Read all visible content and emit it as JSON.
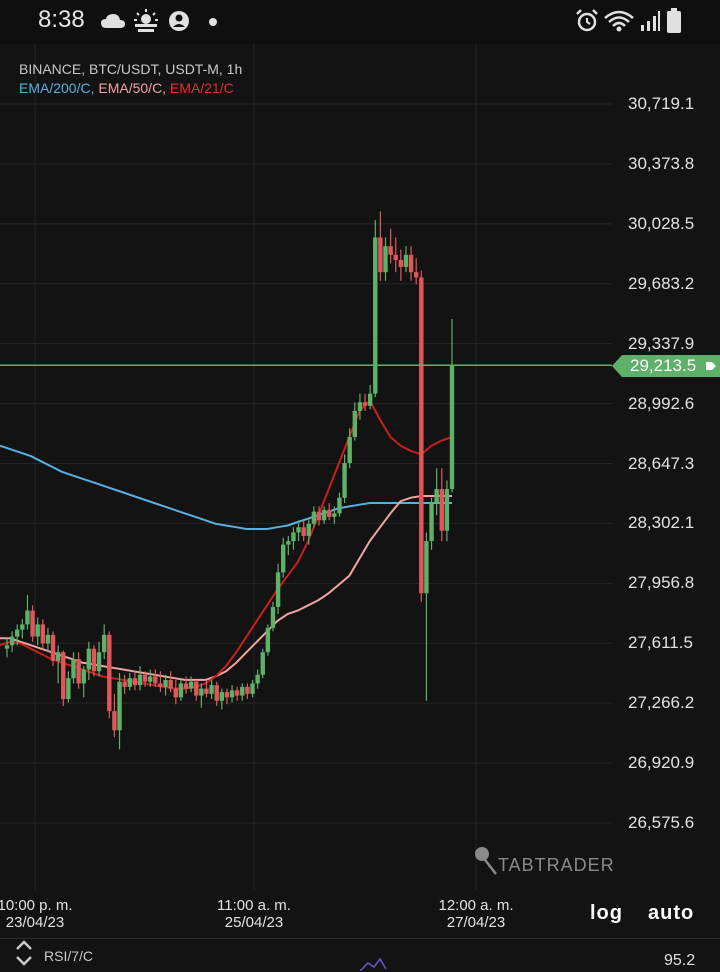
{
  "status_bar": {
    "time": "8:38"
  },
  "header": {
    "symbol": "BINANCE, BTC/USDT, USDT-M, 1h",
    "ema_200": "EMA/200/C,",
    "ema_50": "EMA/50/C,",
    "ema_21": "EMA/21/C"
  },
  "colors": {
    "up": "#5fb069",
    "down": "#e0575b",
    "ema200": "#5ab0e0",
    "ema50": "#f0a4a0",
    "ema21": "#c8201d",
    "price_line": "#5fb069"
  },
  "current_price_label": "29,213.5",
  "controls": {
    "log": "log",
    "auto": "auto"
  },
  "watermark": "TABTRADER",
  "rsi": {
    "label": "RSI/7/C",
    "value": "95.2"
  },
  "chart_data": {
    "type": "candlestick",
    "y_ticks": [
      "30,719.1",
      "30,373.8",
      "30,028.5",
      "29,683.2",
      "29,337.9",
      "28,992.6",
      "28,647.3",
      "28,302.1",
      "27,956.8",
      "27,611.5",
      "27,266.2",
      "26,920.9",
      "26,575.6"
    ],
    "y_tick_values": [
      30719.1,
      30373.8,
      30028.5,
      29683.2,
      29337.9,
      28992.6,
      28647.3,
      28302.1,
      27956.8,
      27611.5,
      27266.2,
      26920.9,
      26575.6
    ],
    "x_ticks": [
      {
        "line1": "10:00 p. m.",
        "line2": "23/04/23"
      },
      {
        "line1": "11:00 a. m.",
        "line2": "25/04/23"
      },
      {
        "line1": "12:00 a. m.",
        "line2": "27/04/23"
      }
    ],
    "current_price": 29213.5,
    "candles": [
      [
        27580,
        27640,
        27530,
        27600
      ],
      [
        27600,
        27680,
        27560,
        27650
      ],
      [
        27650,
        27720,
        27600,
        27690
      ],
      [
        27690,
        27750,
        27640,
        27720
      ],
      [
        27720,
        27890,
        27690,
        27800
      ],
      [
        27800,
        27830,
        27620,
        27650
      ],
      [
        27650,
        27760,
        27600,
        27720
      ],
      [
        27720,
        27750,
        27580,
        27610
      ],
      [
        27610,
        27700,
        27560,
        27660
      ],
      [
        27660,
        27680,
        27480,
        27510
      ],
      [
        27510,
        27600,
        27380,
        27560
      ],
      [
        27560,
        27570,
        27250,
        27290
      ],
      [
        27290,
        27450,
        27270,
        27410
      ],
      [
        27410,
        27560,
        27380,
        27520
      ],
      [
        27520,
        27560,
        27350,
        27380
      ],
      [
        27380,
        27480,
        27300,
        27460
      ],
      [
        27460,
        27620,
        27400,
        27580
      ],
      [
        27580,
        27600,
        27420,
        27450
      ],
      [
        27450,
        27620,
        27420,
        27560
      ],
      [
        27560,
        27720,
        27520,
        27660
      ],
      [
        27660,
        27680,
        27180,
        27220
      ],
      [
        27220,
        27320,
        27070,
        27110
      ],
      [
        27110,
        27440,
        27000,
        27390
      ],
      [
        27390,
        27430,
        27320,
        27360
      ],
      [
        27360,
        27440,
        27340,
        27410
      ],
      [
        27410,
        27450,
        27340,
        27370
      ],
      [
        27370,
        27480,
        27340,
        27430
      ],
      [
        27430,
        27450,
        27360,
        27390
      ],
      [
        27390,
        27460,
        27360,
        27420
      ],
      [
        27420,
        27460,
        27360,
        27380
      ],
      [
        27380,
        27450,
        27330,
        27360
      ],
      [
        27360,
        27430,
        27310,
        27400
      ],
      [
        27400,
        27450,
        27330,
        27350
      ],
      [
        27350,
        27400,
        27260,
        27300
      ],
      [
        27300,
        27400,
        27280,
        27380
      ],
      [
        27380,
        27420,
        27320,
        27350
      ],
      [
        27350,
        27420,
        27330,
        27390
      ],
      [
        27390,
        27400,
        27280,
        27310
      ],
      [
        27310,
        27380,
        27240,
        27350
      ],
      [
        27350,
        27400,
        27300,
        27320
      ],
      [
        27320,
        27400,
        27290,
        27370
      ],
      [
        27370,
        27390,
        27250,
        27280
      ],
      [
        27280,
        27350,
        27230,
        27330
      ],
      [
        27330,
        27350,
        27260,
        27300
      ],
      [
        27300,
        27370,
        27270,
        27340
      ],
      [
        27340,
        27360,
        27280,
        27310
      ],
      [
        27310,
        27380,
        27280,
        27360
      ],
      [
        27360,
        27380,
        27290,
        27320
      ],
      [
        27320,
        27400,
        27300,
        27380
      ],
      [
        27380,
        27460,
        27350,
        27430
      ],
      [
        27430,
        27580,
        27410,
        27560
      ],
      [
        27560,
        27720,
        27540,
        27700
      ],
      [
        27700,
        27850,
        27680,
        27820
      ],
      [
        27820,
        28070,
        27780,
        28020
      ],
      [
        28020,
        28220,
        27990,
        28180
      ],
      [
        28180,
        28230,
        28120,
        28200
      ],
      [
        28200,
        28280,
        28150,
        28250
      ],
      [
        28250,
        28320,
        28200,
        28280
      ],
      [
        28280,
        28320,
        28200,
        28230
      ],
      [
        28230,
        28330,
        28180,
        28300
      ],
      [
        28300,
        28400,
        28280,
        28370
      ],
      [
        28370,
        28400,
        28290,
        28320
      ],
      [
        28320,
        28400,
        28300,
        28380
      ],
      [
        28380,
        28420,
        28320,
        28340
      ],
      [
        28340,
        28400,
        28300,
        28360
      ],
      [
        28360,
        28480,
        28340,
        28450
      ],
      [
        28450,
        28700,
        28420,
        28650
      ],
      [
        28650,
        28850,
        28620,
        28800
      ],
      [
        28800,
        29000,
        28780,
        28950
      ],
      [
        28950,
        29050,
        28900,
        29000
      ],
      [
        29000,
        29050,
        28950,
        28980
      ],
      [
        28980,
        29100,
        28960,
        29050
      ],
      [
        29050,
        30050,
        29030,
        29950
      ],
      [
        29950,
        30100,
        29700,
        29750
      ],
      [
        29750,
        29950,
        29700,
        29900
      ],
      [
        29900,
        30000,
        29800,
        29850
      ],
      [
        29850,
        29950,
        29750,
        29820
      ],
      [
        29820,
        29880,
        29700,
        29780
      ],
      [
        29780,
        29900,
        29750,
        29850
      ],
      [
        29850,
        29900,
        29700,
        29750
      ],
      [
        29750,
        29830,
        29680,
        29720
      ],
      [
        29720,
        29760,
        27850,
        27900
      ],
      [
        27900,
        28250,
        27280,
        28200
      ],
      [
        28200,
        28450,
        28150,
        28420
      ],
      [
        28420,
        28620,
        28350,
        28500
      ],
      [
        28500,
        28620,
        28200,
        28260
      ],
      [
        28260,
        28550,
        28200,
        28500
      ],
      [
        28500,
        29480,
        28480,
        29213.5
      ]
    ],
    "ema_200": [
      28750,
      28730,
      28710,
      28690,
      28660,
      28630,
      28600,
      28580,
      28560,
      28540,
      28520,
      28500,
      28480,
      28460,
      28440,
      28420,
      28400,
      28380,
      28360,
      28340,
      28320,
      28300,
      28290,
      28280,
      28270,
      28270,
      28270,
      28280,
      28290,
      28310,
      28330,
      28350,
      28370,
      28390,
      28400,
      28410,
      28420,
      28420,
      28420,
      28420,
      28420,
      28420,
      28420,
      28420,
      28420
    ],
    "ema_50": [
      27640,
      27640,
      27620,
      27600,
      27580,
      27560,
      27540,
      27520,
      27500,
      27490,
      27480,
      27470,
      27460,
      27450,
      27440,
      27430,
      27420,
      27410,
      27400,
      27400,
      27400,
      27420,
      27450,
      27500,
      27560,
      27620,
      27680,
      27740,
      27780,
      27800,
      27830,
      27860,
      27900,
      27950,
      28000,
      28100,
      28200,
      28280,
      28360,
      28430,
      28450,
      28460,
      28460,
      28460,
      28460
    ],
    "ema_21": [
      27600,
      27620,
      27610,
      27580,
      27550,
      27520,
      27500,
      27480,
      27460,
      27440,
      27420,
      27410,
      27400,
      27390,
      27380,
      27370,
      27360,
      27350,
      27350,
      27360,
      27380,
      27420,
      27480,
      27560,
      27650,
      27740,
      27830,
      27920,
      28000,
      28080,
      28200,
      28350,
      28500,
      28650,
      28800,
      28950,
      29010,
      28900,
      28800,
      28750,
      28720,
      28700,
      28750,
      28780,
      28800
    ]
  }
}
